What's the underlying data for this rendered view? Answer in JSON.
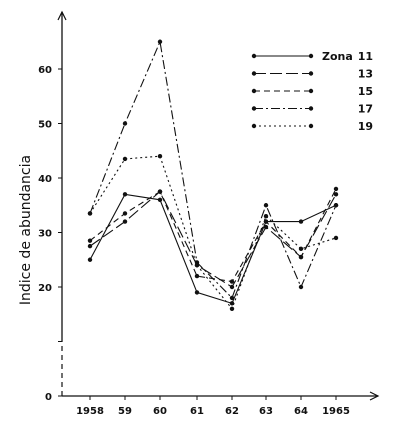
{
  "chart_data": {
    "type": "line",
    "xlabel": "",
    "ylabel": "Indice de abundancia",
    "categories": [
      "1958",
      "59",
      "60",
      "61",
      "62",
      "63",
      "64",
      "1965"
    ],
    "ylim": [
      0,
      70
    ],
    "yticks": [
      0,
      10,
      20,
      30,
      40,
      50,
      60
    ],
    "ytick_labels": [
      "0",
      "",
      "20",
      "30",
      "40",
      "50",
      "60"
    ],
    "grid": false,
    "legend_position": "top-right",
    "legend_prefix": "Zona",
    "series": [
      {
        "name": "11",
        "dash": "solid",
        "values": [
          25,
          37,
          36,
          19,
          17,
          32,
          32,
          35
        ]
      },
      {
        "name": "13",
        "dash": "longdash",
        "values": [
          27.5,
          32,
          37.5,
          24,
          20,
          31,
          25.5,
          37
        ]
      },
      {
        "name": "15",
        "dash": "dash",
        "values": [
          28.5,
          33.5,
          37.5,
          22,
          21,
          32,
          25.5,
          38
        ]
      },
      {
        "name": "17",
        "dash": "dashdot",
        "values": [
          33.5,
          50,
          65,
          24.5,
          18,
          35,
          20,
          35
        ]
      },
      {
        "name": "19",
        "dash": "dot",
        "values": [
          33.5,
          43.5,
          44,
          24,
          16,
          33,
          27,
          29
        ]
      }
    ]
  }
}
